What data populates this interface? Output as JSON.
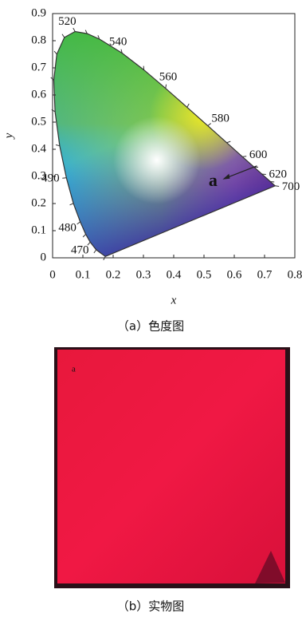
{
  "chart_data": {
    "type": "cie",
    "x_label": "x",
    "y_label": "y",
    "xlim": [
      0,
      0.8
    ],
    "ylim": [
      0,
      0.9
    ],
    "xticks": [
      0,
      0.1,
      0.2,
      0.3,
      0.4,
      0.5,
      0.6,
      0.7,
      0.8
    ],
    "yticks": [
      0,
      0.1,
      0.2,
      0.3,
      0.4,
      0.5,
      0.6,
      0.7,
      0.8,
      0.9
    ],
    "locus": {
      "x": [
        0.1741,
        0.144,
        0.1241,
        0.1096,
        0.0913,
        0.0687,
        0.0454,
        0.0235,
        0.0082,
        0.0039,
        0.0139,
        0.0389,
        0.0743,
        0.1142,
        0.1547,
        0.2296,
        0.3016,
        0.3731,
        0.4441,
        0.5125,
        0.5752,
        0.627,
        0.6658,
        0.6915,
        0.719,
        0.7347
      ],
      "y": [
        0.005,
        0.0297,
        0.0578,
        0.0868,
        0.1327,
        0.2007,
        0.295,
        0.4127,
        0.5384,
        0.6548,
        0.7502,
        0.812,
        0.8338,
        0.8262,
        0.8059,
        0.7543,
        0.6923,
        0.6245,
        0.5547,
        0.4866,
        0.4242,
        0.3725,
        0.334,
        0.3083,
        0.2809,
        0.2653
      ],
      "wavelengths": [
        null,
        null,
        "470",
        null,
        "480",
        null,
        "490",
        null,
        null,
        null,
        null,
        null,
        "520",
        null,
        null,
        "540",
        null,
        "560",
        null,
        "580",
        null,
        "600",
        null,
        "620",
        null,
        "700"
      ]
    },
    "annotation": {
      "label": "a",
      "x": 0.53,
      "y": 0.28
    }
  },
  "figure": {
    "caption_a": "（a）色度图",
    "photo_label": "a",
    "caption_b": "（b）实物图"
  }
}
